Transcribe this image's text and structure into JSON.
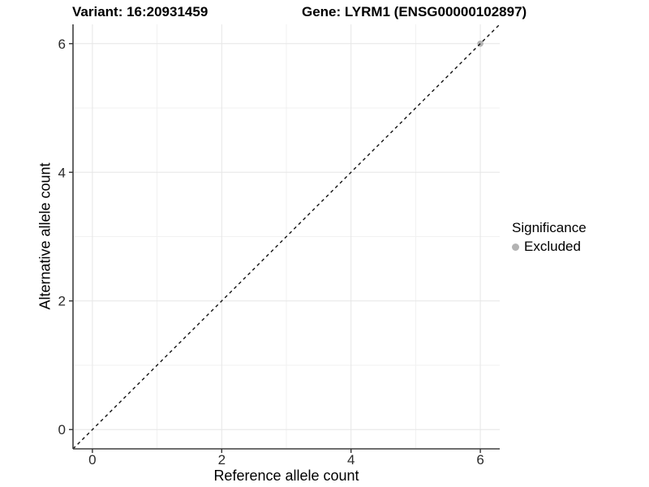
{
  "chart_data": {
    "type": "scatter",
    "titles": [
      "Variant: 16:20931459",
      "Gene: LYRM1 (ENSG00000102897)"
    ],
    "xlabel": "Reference allele count",
    "ylabel": "Alternative allele count",
    "xlim": [
      -0.3,
      6.3
    ],
    "ylim": [
      -0.3,
      6.3
    ],
    "xticks": [
      0,
      2,
      4,
      6
    ],
    "yticks": [
      0,
      2,
      4,
      6
    ],
    "xminor": [
      1,
      3,
      5
    ],
    "yminor": [
      1,
      3,
      5
    ],
    "grid": "on",
    "legend": {
      "position": "right",
      "title": "Significance",
      "items": [
        {
          "label": "Excluded",
          "color": "#b3b3b3",
          "marker": "circle-icon"
        }
      ]
    },
    "series": [
      {
        "name": "Excluded",
        "color": "#b3b3b3",
        "points": [
          {
            "x": 6,
            "y": 6
          }
        ]
      }
    ],
    "reference_line": {
      "kind": "identity",
      "slope": 1,
      "intercept": 0,
      "style": "dashed",
      "color": "#111111"
    },
    "colors": {
      "grid_major": "#e6e6e6",
      "grid_minor": "#f1f1f1",
      "axis_line": "#3f3f3f",
      "tick_mark": "#343434",
      "tick_label": "#2b2b2b",
      "point": "#b3b3b3",
      "background": "#ffffff"
    }
  }
}
